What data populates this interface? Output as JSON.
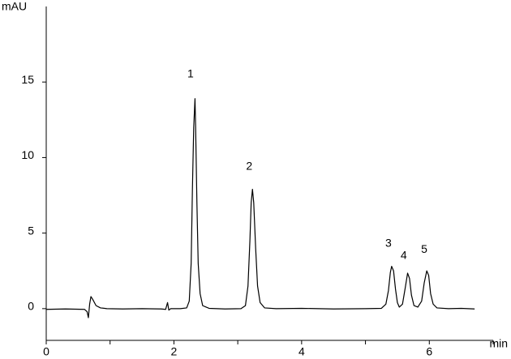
{
  "chart_data": {
    "type": "line",
    "y_axis_label": "mAU",
    "x_axis_label": "min",
    "color": "#000000",
    "xlim": [
      0,
      7
    ],
    "xticks": [
      0,
      2,
      4,
      6
    ],
    "x_minor_ticks": [
      1,
      3,
      5,
      7
    ],
    "ylim": [
      -2.1,
      20
    ],
    "yticks": [
      0,
      5,
      10,
      15
    ],
    "grid": false,
    "x": [
      0.0,
      0.3,
      0.6,
      0.64,
      0.66,
      0.68,
      0.7,
      0.73,
      0.78,
      0.85,
      0.95,
      1.2,
      1.5,
      1.8,
      1.87,
      1.9,
      1.92,
      1.95,
      2.1,
      2.2,
      2.24,
      2.27,
      2.29,
      2.31,
      2.33,
      2.34,
      2.36,
      2.38,
      2.41,
      2.45,
      2.55,
      2.8,
      3.05,
      3.12,
      3.16,
      3.19,
      3.21,
      3.23,
      3.25,
      3.28,
      3.31,
      3.35,
      3.42,
      3.6,
      4.0,
      4.5,
      5.0,
      5.25,
      5.32,
      5.36,
      5.39,
      5.41,
      5.44,
      5.47,
      5.5,
      5.53,
      5.58,
      5.62,
      5.66,
      5.69,
      5.72,
      5.76,
      5.82,
      5.88,
      5.92,
      5.96,
      5.99,
      6.02,
      6.06,
      6.12,
      6.3,
      6.5,
      6.71
    ],
    "values": [
      -0.05,
      -0.02,
      -0.05,
      -0.2,
      -0.6,
      0.3,
      0.8,
      0.6,
      0.2,
      0.05,
      0.0,
      -0.02,
      0.0,
      -0.02,
      -0.05,
      0.4,
      -0.1,
      0.0,
      0.0,
      0.05,
      0.5,
      3,
      8,
      12,
      13.9,
      12,
      7,
      3,
      1,
      0.2,
      0.02,
      -0.02,
      0.0,
      0.2,
      1.5,
      4.5,
      7,
      7.9,
      7,
      4,
      1.5,
      0.4,
      0.05,
      0.0,
      0.02,
      -0.02,
      0.0,
      0.02,
      0.3,
      1.2,
      2.4,
      2.8,
      2.5,
      1.3,
      0.4,
      0.1,
      0.3,
      1.3,
      2.35,
      2.0,
      0.9,
      0.2,
      0.1,
      0.5,
      1.7,
      2.5,
      2.2,
      1.0,
      0.3,
      0.05,
      0.0,
      0.02,
      -0.02
    ],
    "annotations": [
      {
        "text": "1",
        "x": 2.26,
        "y": 15.5
      },
      {
        "text": "2",
        "x": 3.18,
        "y": 9.4
      },
      {
        "text": "3",
        "x": 5.36,
        "y": 4.3
      },
      {
        "text": "4",
        "x": 5.6,
        "y": 3.5
      },
      {
        "text": "5",
        "x": 5.92,
        "y": 3.9
      }
    ]
  }
}
